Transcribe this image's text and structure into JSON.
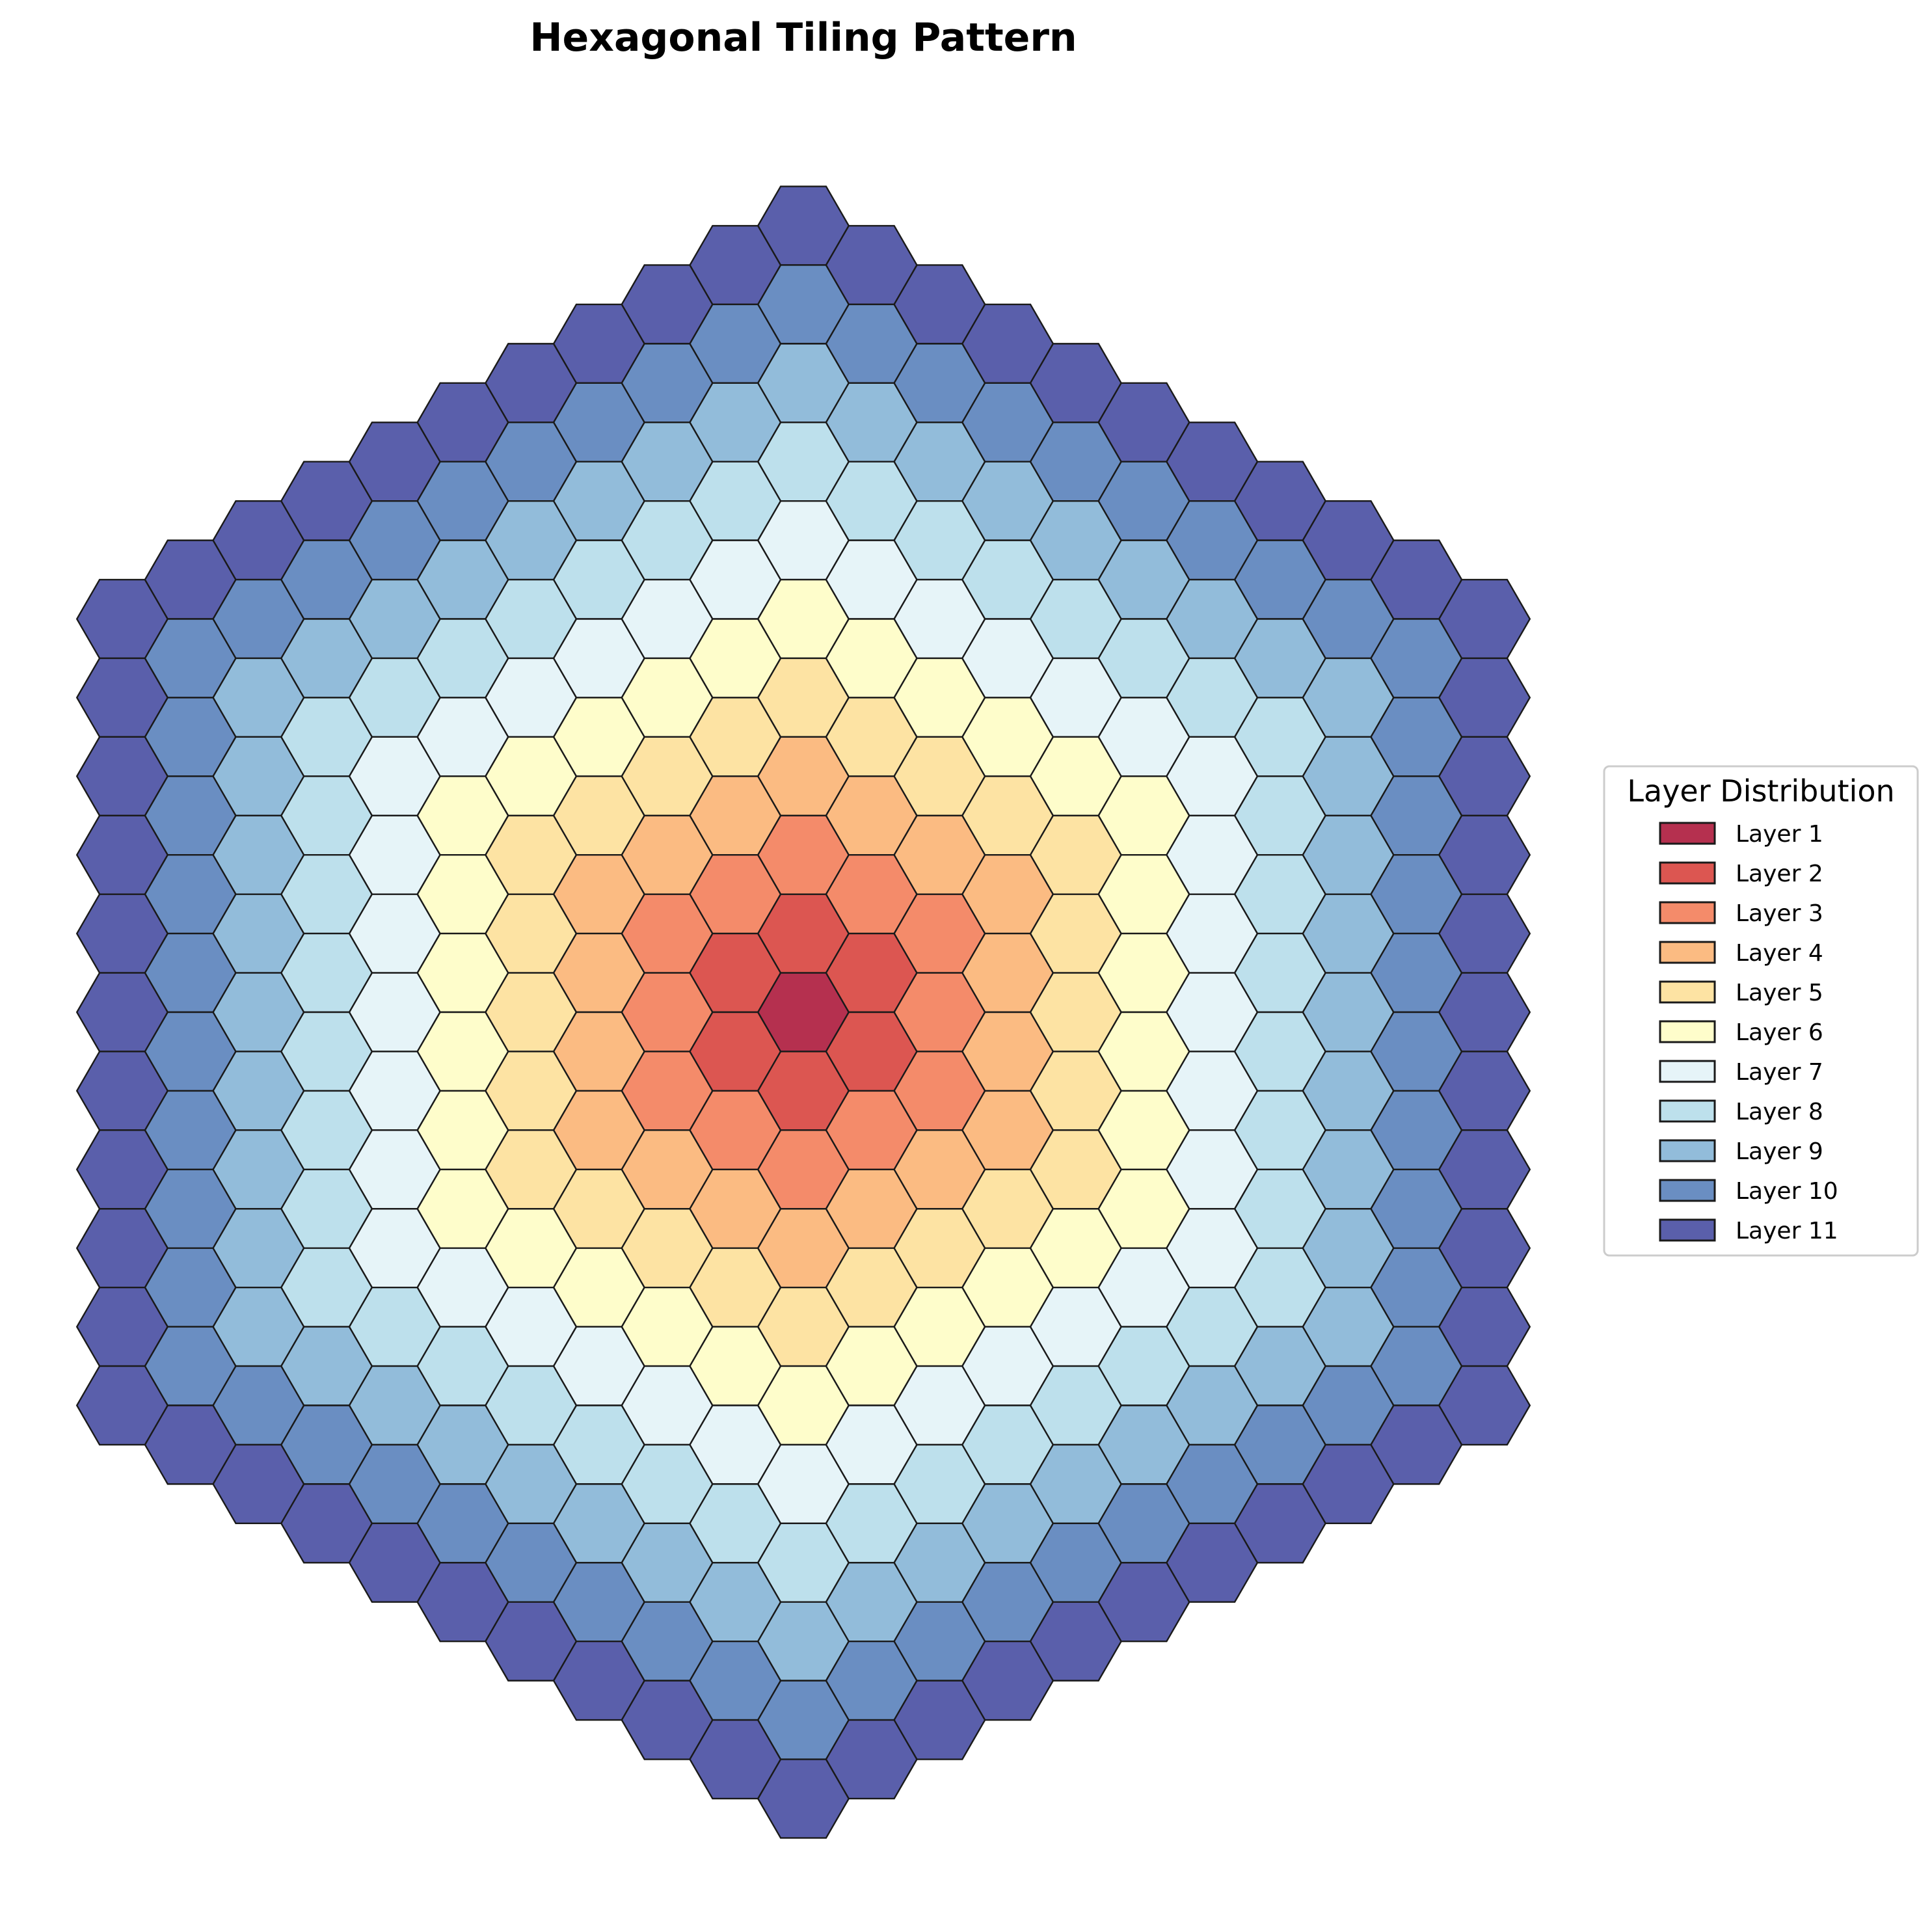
{
  "chart_data": {
    "type": "heatmap",
    "title": "Hexagonal Tiling Pattern",
    "xlabel": "",
    "ylabel": "",
    "grid": false,
    "axes_visible": false,
    "tiling": "hexagonal, flat-top cells, offset columns",
    "columns": 21,
    "center_layer": 1,
    "max_layer": 11,
    "column_cell_counts": [
      11,
      12,
      13,
      14,
      15,
      16,
      17,
      18,
      19,
      20,
      21,
      20,
      19,
      18,
      17,
      16,
      15,
      14,
      13,
      12,
      11
    ],
    "layer_rule": "layer = 1 + hex distance from the center cell",
    "legend": {
      "title": "Layer Distribution",
      "position": "center-right",
      "items": [
        {
          "label": "Layer 1",
          "color": "#b5304f"
        },
        {
          "label": "Layer 2",
          "color": "#dc5651"
        },
        {
          "label": "Layer 3",
          "color": "#f48b6a"
        },
        {
          "label": "Layer 4",
          "color": "#fbbb82"
        },
        {
          "label": "Layer 5",
          "color": "#fde3a3"
        },
        {
          "label": "Layer 6",
          "color": "#fefdcb"
        },
        {
          "label": "Layer 7",
          "color": "#e6f4f8"
        },
        {
          "label": "Layer 8",
          "color": "#bde0ec"
        },
        {
          "label": "Layer 9",
          "color": "#92bcda"
        },
        {
          "label": "Layer 10",
          "color": "#6a8ec2"
        },
        {
          "label": "Layer 11",
          "color": "#5a5fab"
        }
      ]
    },
    "edge_color": "#1a1a1a"
  }
}
